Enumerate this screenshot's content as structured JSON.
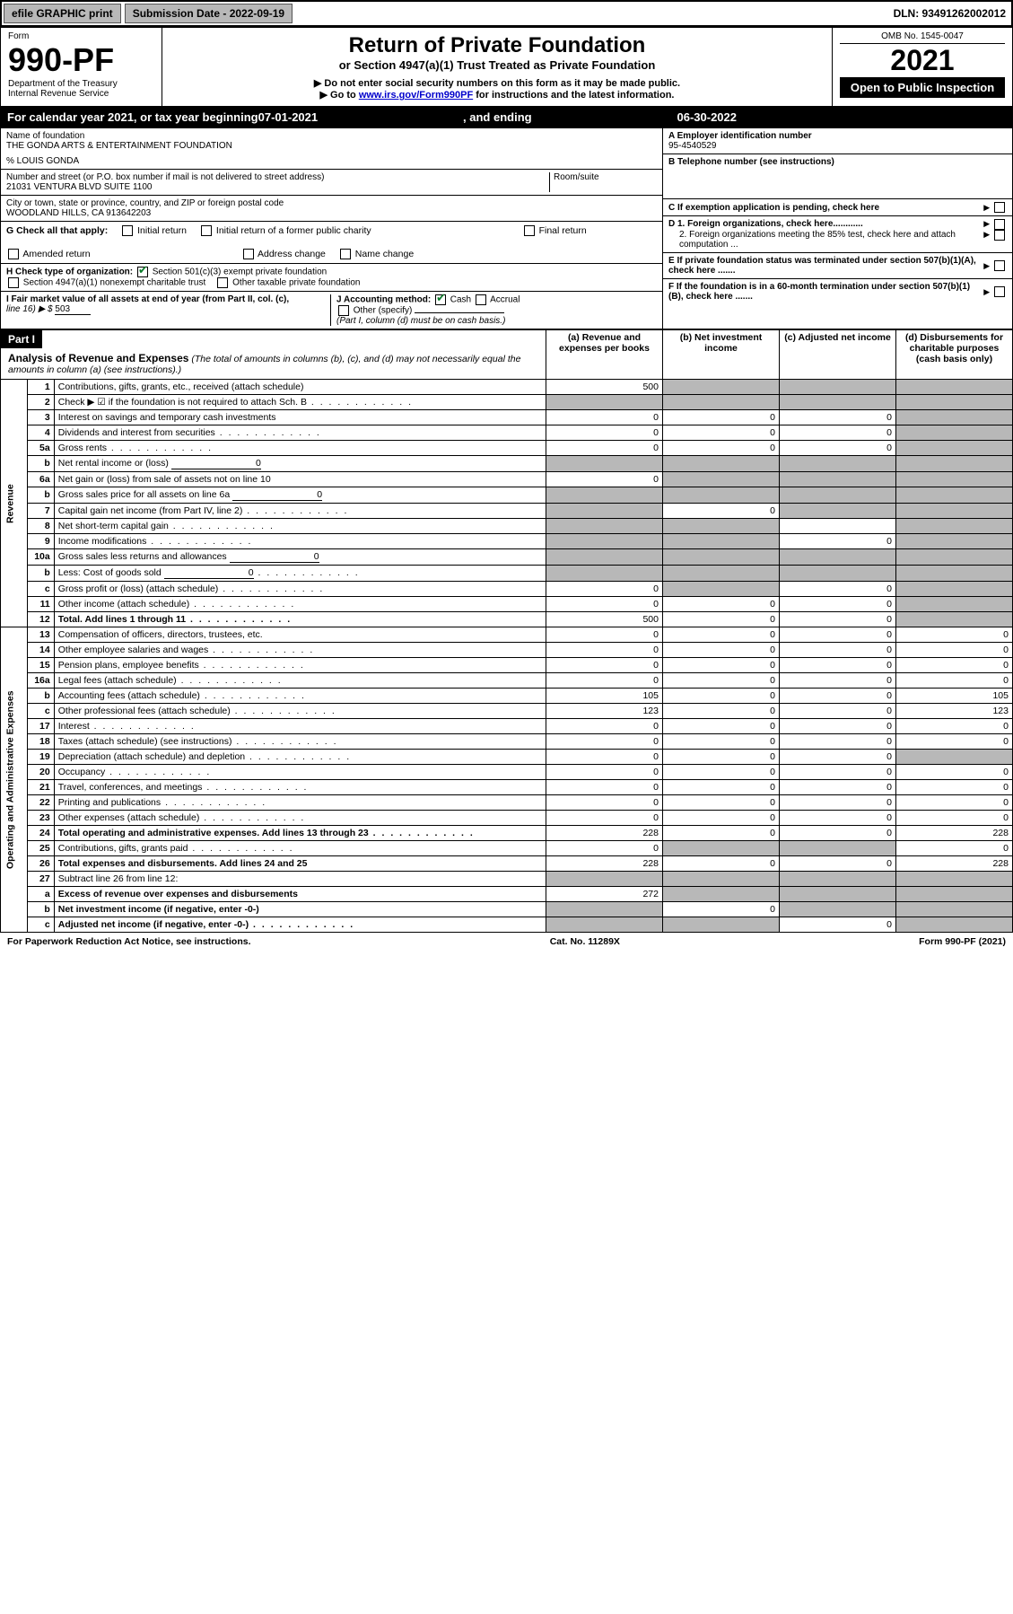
{
  "topbar": {
    "efile": "efile GRAPHIC print",
    "submission_label": "Submission Date - 2022-09-19",
    "dln": "DLN: 93491262002012"
  },
  "header": {
    "form_label": "Form",
    "form_number": "990-PF",
    "dept": "Department of the Treasury",
    "irs": "Internal Revenue Service",
    "title": "Return of Private Foundation",
    "subtitle": "or Section 4947(a)(1) Trust Treated as Private Foundation",
    "note1": "▶ Do not enter social security numbers on this form as it may be made public.",
    "note2_prefix": "▶ Go to ",
    "note2_link": "www.irs.gov/Form990PF",
    "note2_suffix": " for instructions and the latest information.",
    "omb": "OMB No. 1545-0047",
    "year": "2021",
    "open": "Open to Public Inspection"
  },
  "calyear": {
    "prefix": "For calendar year 2021, or tax year beginning ",
    "begin": "07-01-2021",
    "mid": " , and ending ",
    "end": "06-30-2022"
  },
  "name_block": {
    "name_label": "Name of foundation",
    "name": "THE GONDA ARTS & ENTERTAINMENT FOUNDATION",
    "care_of": "% LOUIS GONDA",
    "addr_label": "Number and street (or P.O. box number if mail is not delivered to street address)",
    "addr": "21031 VENTURA BLVD SUITE 1100",
    "room_label": "Room/suite",
    "city_label": "City or town, state or province, country, and ZIP or foreign postal code",
    "city": "WOODLAND HILLS, CA  913642203"
  },
  "right_block": {
    "a_label": "A Employer identification number",
    "a_value": "95-4540529",
    "b_label": "B Telephone number (see instructions)",
    "c_label": "C If exemption application is pending, check here",
    "d1_label": "D 1. Foreign organizations, check here............",
    "d2_label": "2. Foreign organizations meeting the 85% test, check here and attach computation ...",
    "e_label": "E  If private foundation status was terminated under section 507(b)(1)(A), check here .......",
    "f_label": "F  If the foundation is in a 60-month termination under section 507(b)(1)(B), check here ......."
  },
  "g_block": {
    "label": "G Check all that apply:",
    "o1": "Initial return",
    "o2": "Initial return of a former public charity",
    "o3": "Final return",
    "o4": "Amended return",
    "o5": "Address change",
    "o6": "Name change"
  },
  "h_block": {
    "label": "H Check type of organization:",
    "o1": "Section 501(c)(3) exempt private foundation",
    "o2": "Section 4947(a)(1) nonexempt charitable trust",
    "o3": "Other taxable private foundation"
  },
  "i_block": {
    "label": "I Fair market value of all assets at end of year (from Part II, col. (c),",
    "line16_prefix": "line 16) ▶ $",
    "line16_value": "503"
  },
  "j_block": {
    "label": "J Accounting method:",
    "o1": "Cash",
    "o2": "Accrual",
    "o3": "Other (specify)",
    "note": "(Part I, column (d) must be on cash basis.)"
  },
  "part1": {
    "part_label": "Part I",
    "title": "Analysis of Revenue and Expenses",
    "note": "(The total of amounts in columns (b), (c), and (d) may not necessarily equal the amounts in column (a) (see instructions).)",
    "col_a": "(a)  Revenue and expenses per books",
    "col_b": "(b)  Net investment income",
    "col_c": "(c)  Adjusted net income",
    "col_d": "(d)  Disbursements for charitable purposes (cash basis only)"
  },
  "section_labels": {
    "revenue": "Revenue",
    "expenses": "Operating and Administrative Expenses"
  },
  "rows": [
    {
      "n": "1",
      "d": "Contributions, gifts, grants, etc., received (attach schedule)",
      "a": "500",
      "b": "",
      "c": "",
      "dcol": "",
      "shade_b": true,
      "shade_c": true,
      "shade_d": true
    },
    {
      "n": "2",
      "d": "Check ▶ ☑ if the foundation is not required to attach Sch. B",
      "a": "",
      "b": "",
      "c": "",
      "dcol": "",
      "shade_a": true,
      "shade_b": true,
      "shade_c": true,
      "shade_d": true,
      "dotted": true
    },
    {
      "n": "3",
      "d": "Interest on savings and temporary cash investments",
      "a": "0",
      "b": "0",
      "c": "0",
      "dcol": "",
      "shade_d": true
    },
    {
      "n": "4",
      "d": "Dividends and interest from securities",
      "a": "0",
      "b": "0",
      "c": "0",
      "dcol": "",
      "shade_d": true,
      "dotted": true
    },
    {
      "n": "5a",
      "d": "Gross rents",
      "a": "0",
      "b": "0",
      "c": "0",
      "dcol": "",
      "shade_d": true,
      "dotted": true
    },
    {
      "n": "b",
      "d": "Net rental income or (loss)",
      "a": "",
      "b": "",
      "c": "",
      "dcol": "",
      "inline_val": "0",
      "shade_a": true,
      "shade_b": true,
      "shade_c": true,
      "shade_d": true
    },
    {
      "n": "6a",
      "d": "Net gain or (loss) from sale of assets not on line 10",
      "a": "0",
      "b": "",
      "c": "",
      "dcol": "",
      "shade_b": true,
      "shade_c": true,
      "shade_d": true
    },
    {
      "n": "b",
      "d": "Gross sales price for all assets on line 6a",
      "a": "",
      "b": "",
      "c": "",
      "dcol": "",
      "inline_val": "0",
      "shade_a": true,
      "shade_b": true,
      "shade_c": true,
      "shade_d": true
    },
    {
      "n": "7",
      "d": "Capital gain net income (from Part IV, line 2)",
      "a": "",
      "b": "0",
      "c": "",
      "dcol": "",
      "shade_a": true,
      "shade_c": true,
      "shade_d": true,
      "dotted": true
    },
    {
      "n": "8",
      "d": "Net short-term capital gain",
      "a": "",
      "b": "",
      "c": "",
      "dcol": "",
      "shade_a": true,
      "shade_b": true,
      "shade_d": true,
      "dotted": true
    },
    {
      "n": "9",
      "d": "Income modifications",
      "a": "",
      "b": "",
      "c": "0",
      "dcol": "",
      "shade_a": true,
      "shade_b": true,
      "shade_d": true,
      "dotted": true
    },
    {
      "n": "10a",
      "d": "Gross sales less returns and allowances",
      "a": "",
      "b": "",
      "c": "",
      "dcol": "",
      "inline_val": "0",
      "shade_a": true,
      "shade_b": true,
      "shade_c": true,
      "shade_d": true
    },
    {
      "n": "b",
      "d": "Less: Cost of goods sold",
      "a": "",
      "b": "",
      "c": "",
      "dcol": "",
      "inline_val": "0",
      "shade_a": true,
      "shade_b": true,
      "shade_c": true,
      "shade_d": true,
      "dotted": true
    },
    {
      "n": "c",
      "d": "Gross profit or (loss) (attach schedule)",
      "a": "0",
      "b": "",
      "c": "0",
      "dcol": "",
      "shade_b": true,
      "shade_d": true,
      "dotted": true
    },
    {
      "n": "11",
      "d": "Other income (attach schedule)",
      "a": "0",
      "b": "0",
      "c": "0",
      "dcol": "",
      "shade_d": true,
      "dotted": true
    },
    {
      "n": "12",
      "d": "Total. Add lines 1 through 11",
      "a": "500",
      "b": "0",
      "c": "0",
      "dcol": "",
      "bold": true,
      "shade_d": true,
      "dotted": true
    },
    {
      "n": "13",
      "d": "Compensation of officers, directors, trustees, etc.",
      "a": "0",
      "b": "0",
      "c": "0",
      "dcol": "0"
    },
    {
      "n": "14",
      "d": "Other employee salaries and wages",
      "a": "0",
      "b": "0",
      "c": "0",
      "dcol": "0",
      "dotted": true
    },
    {
      "n": "15",
      "d": "Pension plans, employee benefits",
      "a": "0",
      "b": "0",
      "c": "0",
      "dcol": "0",
      "dotted": true
    },
    {
      "n": "16a",
      "d": "Legal fees (attach schedule)",
      "a": "0",
      "b": "0",
      "c": "0",
      "dcol": "0",
      "dotted": true
    },
    {
      "n": "b",
      "d": "Accounting fees (attach schedule)",
      "a": "105",
      "b": "0",
      "c": "0",
      "dcol": "105",
      "dotted": true
    },
    {
      "n": "c",
      "d": "Other professional fees (attach schedule)",
      "a": "123",
      "b": "0",
      "c": "0",
      "dcol": "123",
      "dotted": true
    },
    {
      "n": "17",
      "d": "Interest",
      "a": "0",
      "b": "0",
      "c": "0",
      "dcol": "0",
      "dotted": true
    },
    {
      "n": "18",
      "d": "Taxes (attach schedule) (see instructions)",
      "a": "0",
      "b": "0",
      "c": "0",
      "dcol": "0",
      "dotted": true
    },
    {
      "n": "19",
      "d": "Depreciation (attach schedule) and depletion",
      "a": "0",
      "b": "0",
      "c": "0",
      "dcol": "",
      "shade_d": true,
      "dotted": true
    },
    {
      "n": "20",
      "d": "Occupancy",
      "a": "0",
      "b": "0",
      "c": "0",
      "dcol": "0",
      "dotted": true
    },
    {
      "n": "21",
      "d": "Travel, conferences, and meetings",
      "a": "0",
      "b": "0",
      "c": "0",
      "dcol": "0",
      "dotted": true
    },
    {
      "n": "22",
      "d": "Printing and publications",
      "a": "0",
      "b": "0",
      "c": "0",
      "dcol": "0",
      "dotted": true
    },
    {
      "n": "23",
      "d": "Other expenses (attach schedule)",
      "a": "0",
      "b": "0",
      "c": "0",
      "dcol": "0",
      "dotted": true
    },
    {
      "n": "24",
      "d": "Total operating and administrative expenses. Add lines 13 through 23",
      "a": "228",
      "b": "0",
      "c": "0",
      "dcol": "228",
      "bold": true,
      "dotted": true
    },
    {
      "n": "25",
      "d": "Contributions, gifts, grants paid",
      "a": "0",
      "b": "",
      "c": "",
      "dcol": "0",
      "shade_b": true,
      "shade_c": true,
      "dotted": true
    },
    {
      "n": "26",
      "d": "Total expenses and disbursements. Add lines 24 and 25",
      "a": "228",
      "b": "0",
      "c": "0",
      "dcol": "228",
      "bold": true
    },
    {
      "n": "27",
      "d": "Subtract line 26 from line 12:",
      "a": "",
      "b": "",
      "c": "",
      "dcol": "",
      "shade_a": true,
      "shade_b": true,
      "shade_c": true,
      "shade_d": true
    },
    {
      "n": "a",
      "d": "Excess of revenue over expenses and disbursements",
      "a": "272",
      "b": "",
      "c": "",
      "dcol": "",
      "bold": true,
      "shade_b": true,
      "shade_c": true,
      "shade_d": true
    },
    {
      "n": "b",
      "d": "Net investment income (if negative, enter -0-)",
      "a": "",
      "b": "0",
      "c": "",
      "dcol": "",
      "bold": true,
      "shade_a": true,
      "shade_c": true,
      "shade_d": true
    },
    {
      "n": "c",
      "d": "Adjusted net income (if negative, enter -0-)",
      "a": "",
      "b": "",
      "c": "0",
      "dcol": "",
      "bold": true,
      "shade_a": true,
      "shade_b": true,
      "shade_d": true,
      "dotted": true
    }
  ],
  "footer": {
    "left": "For Paperwork Reduction Act Notice, see instructions.",
    "center": "Cat. No. 11289X",
    "right": "Form 990-PF (2021)"
  }
}
